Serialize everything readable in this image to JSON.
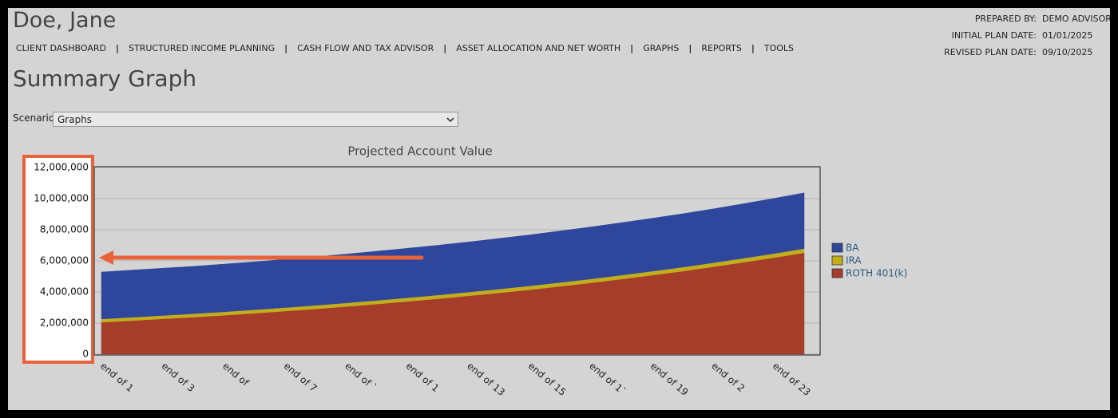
{
  "header": {
    "client_name": "Doe, Jane",
    "nav": [
      "CLIENT DASHBOARD",
      "STRUCTURED INCOME PLANNING",
      "CASH FLOW AND TAX ADVISOR",
      "ASSET ALLOCATION AND NET WORTH",
      "GRAPHS",
      "REPORTS",
      "TOOLS"
    ],
    "plan_info": [
      {
        "label": "PREPARED BY:",
        "value": "DEMO ADVISOR"
      },
      {
        "label": "INITIAL PLAN DATE:",
        "value": "01/01/2025"
      },
      {
        "label": "REVISED PLAN DATE:",
        "value": "09/10/2025"
      }
    ]
  },
  "page_title": "Summary Graph",
  "scenario": {
    "label": "Scenario",
    "selected": "Graphs"
  },
  "chart_data": {
    "type": "stacked_area",
    "title": "Projected Account Value",
    "categories": [
      "end of 1",
      null,
      "end of 3",
      null,
      "end of",
      null,
      "end of 7",
      null,
      "end of `",
      null,
      "end of 1",
      null,
      "end of 13",
      null,
      "end of 15",
      null,
      "end of 1`",
      null,
      "end of 19",
      null,
      "end of 2",
      null,
      "end of 23",
      null
    ],
    "series": [
      {
        "name": "BA",
        "color": "#2e479c",
        "values": [
          3020000,
          3030000,
          3040000,
          3050000,
          3070000,
          3080000,
          3100000,
          3120000,
          3140000,
          3160000,
          3180000,
          3200000,
          3220000,
          3250000,
          3280000,
          3310000,
          3340000,
          3370000,
          3400000,
          3430000,
          3460000,
          3500000,
          3540000,
          3580000
        ]
      },
      {
        "name": "IRA",
        "color": "#c2ad1c",
        "values": [
          210000,
          213000,
          216000,
          218000,
          221000,
          224000,
          226000,
          229000,
          232000,
          234000,
          237000,
          240000,
          242000,
          245000,
          248000,
          250000,
          253000,
          256000,
          258000,
          261000,
          264000,
          266000,
          268000,
          270000
        ]
      },
      {
        "name": "ROTH 401(k)",
        "color": "#a63d2a",
        "values": [
          2050000,
          2160000,
          2270000,
          2380000,
          2500000,
          2630000,
          2770000,
          2910000,
          3060000,
          3220000,
          3390000,
          3560000,
          3750000,
          3940000,
          4140000,
          4360000,
          4580000,
          4820000,
          5070000,
          5330000,
          5610000,
          5900000,
          6200000,
          6520000
        ]
      }
    ],
    "ylim": [
      0,
      12000000
    ],
    "yticks": [
      {
        "value": 0,
        "label": "0"
      },
      {
        "value": 2000000,
        "label": "2,000,000"
      },
      {
        "value": 4000000,
        "label": "4,000,000"
      },
      {
        "value": 6000000,
        "label": "6,000,000"
      },
      {
        "value": 8000000,
        "label": "8,000,000"
      },
      {
        "value": 10000000,
        "label": "10,000,000"
      },
      {
        "value": 12000000,
        "label": "12,000,000"
      }
    ],
    "grid": true,
    "legend": "right",
    "stacked": true
  }
}
